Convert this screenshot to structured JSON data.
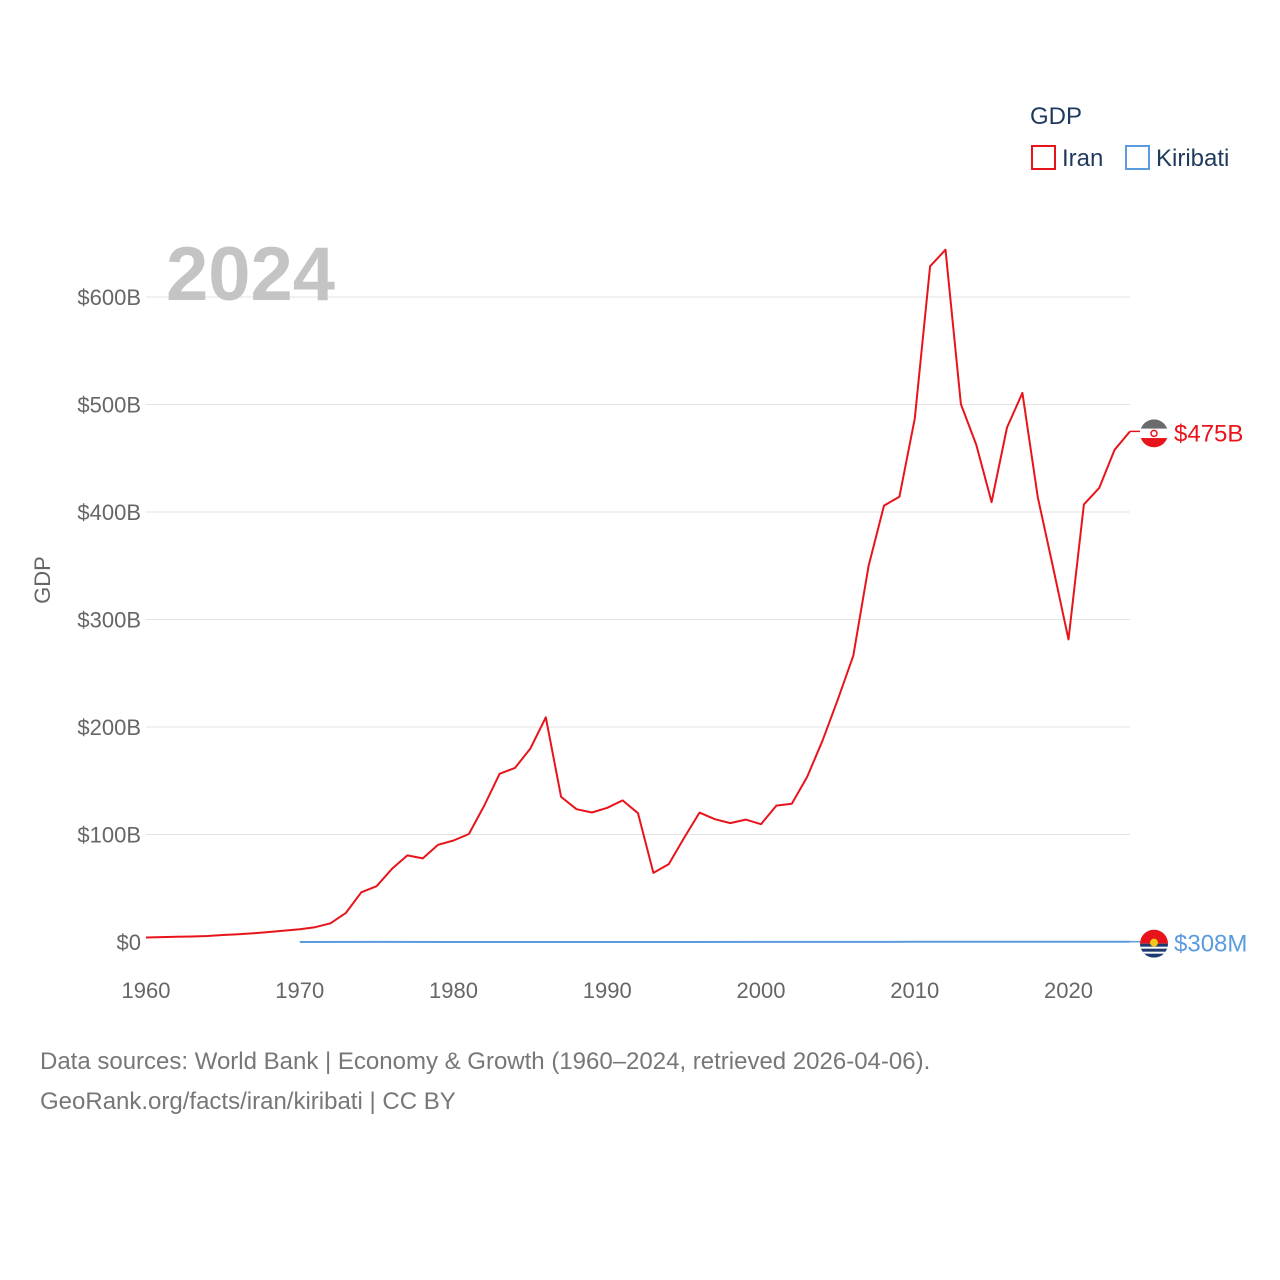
{
  "chart_data": {
    "type": "line",
    "title": "",
    "year_label": "2024",
    "ylabel": "GDP",
    "xlabel": "",
    "xlim": [
      1960,
      2024
    ],
    "ylim": [
      0,
      650
    ],
    "y_unit": "billion USD",
    "x_ticks": [
      1960,
      1970,
      1980,
      1990,
      2000,
      2010,
      2020
    ],
    "y_ticks": [
      {
        "value": 0,
        "label": "$0"
      },
      {
        "value": 100,
        "label": "$100B"
      },
      {
        "value": 200,
        "label": "$200B"
      },
      {
        "value": 300,
        "label": "$300B"
      },
      {
        "value": 400,
        "label": "$400B"
      },
      {
        "value": 500,
        "label": "$500B"
      },
      {
        "value": 600,
        "label": "$600B"
      }
    ],
    "legend": {
      "title": "GDP",
      "position": "top-right"
    },
    "series": [
      {
        "name": "Iran",
        "color": "#e8141b",
        "end_label": "$475B",
        "end_value": 475,
        "flag_icon": "iran-flag-icon",
        "x": [
          1960,
          1961,
          1962,
          1963,
          1964,
          1965,
          1966,
          1967,
          1968,
          1969,
          1970,
          1971,
          1972,
          1973,
          1974,
          1975,
          1976,
          1977,
          1978,
          1979,
          1980,
          1981,
          1982,
          1983,
          1984,
          1985,
          1986,
          1987,
          1988,
          1989,
          1990,
          1991,
          1992,
          1993,
          1994,
          1995,
          1996,
          1997,
          1998,
          1999,
          2000,
          2001,
          2002,
          2003,
          2004,
          2005,
          2006,
          2007,
          2008,
          2009,
          2010,
          2011,
          2012,
          2013,
          2014,
          2015,
          2016,
          2017,
          2018,
          2019,
          2020,
          2021,
          2022,
          2023,
          2024
        ],
        "values": [
          4.2,
          4.6,
          4.9,
          5.1,
          5.6,
          6.5,
          7.2,
          8.1,
          9.3,
          10.6,
          11.9,
          13.8,
          17.4,
          27.1,
          46.2,
          51.9,
          68.1,
          80.6,
          77.8,
          90.4,
          94.4,
          100.5,
          127,
          156.5,
          162,
          180,
          209,
          135,
          123.5,
          120.5,
          124.8,
          131.7,
          119.8,
          64.3,
          72.5,
          96.8,
          120.4,
          114.2,
          110.6,
          113.9,
          109.6,
          126.9,
          128.6,
          153.5,
          187.3,
          225.8,
          266.3,
          349.9,
          406,
          414.1,
          487.1,
          628.6,
          644,
          500.4,
          462.4,
          409.2,
          478.6,
          510.8,
          413.7,
          348.4,
          281.5,
          407.1,
          422.5,
          457.9,
          475
        ]
      },
      {
        "name": "Kiribati",
        "color": "#5b9bdf",
        "end_label": "$308M",
        "end_value": 0.308,
        "flag_icon": "kiribati-flag-icon",
        "x": [
          1970,
          1975,
          1980,
          1985,
          1990,
          1995,
          2000,
          2005,
          2010,
          2015,
          2020,
          2024
        ],
        "values": [
          0.014,
          0.06,
          0.038,
          0.028,
          0.029,
          0.043,
          0.067,
          0.112,
          0.156,
          0.171,
          0.181,
          0.308
        ]
      }
    ]
  },
  "footer": {
    "line1": "Data sources: World Bank | Economy & Growth (1960–2024, retrieved 2026-04-06).",
    "line2": "GeoRank.org/facts/iran/kiribati | CC BY"
  }
}
